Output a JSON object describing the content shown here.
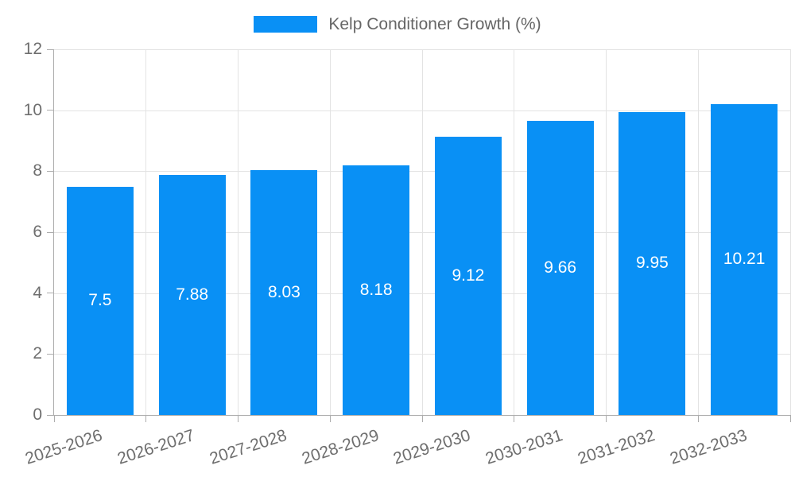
{
  "colors": {
    "bar": "#0990f5",
    "grid": "#e3e3e3",
    "axis": "#adadad",
    "tick_text": "#6e6e6e",
    "legend_text": "#666666",
    "value_text": "#ffffff",
    "background": "#ffffff"
  },
  "legend": {
    "label": "Kelp Conditioner Growth (%)",
    "swatch": "blue-rectangle"
  },
  "chart_data": {
    "type": "bar",
    "title": "",
    "xlabel": "",
    "ylabel": "",
    "categories": [
      "2025-2026",
      "2026-2027",
      "2027-2028",
      "2028-2029",
      "2029-2030",
      "2030-2031",
      "2031-2032",
      "2032-2033"
    ],
    "values": [
      7.5,
      7.88,
      8.03,
      8.18,
      9.12,
      9.66,
      9.95,
      10.21
    ],
    "value_labels": [
      "7.5",
      "7.88",
      "8.03",
      "8.18",
      "9.12",
      "9.66",
      "9.95",
      "10.21"
    ],
    "series_name": "Kelp Conditioner Growth (%)",
    "ylim": [
      0,
      12
    ],
    "yticks": [
      0,
      2,
      4,
      6,
      8,
      10,
      12
    ],
    "grid": true,
    "legend_position": "top",
    "x_label_rotation_deg": -18,
    "value_label_position": "center-inside-bar"
  }
}
